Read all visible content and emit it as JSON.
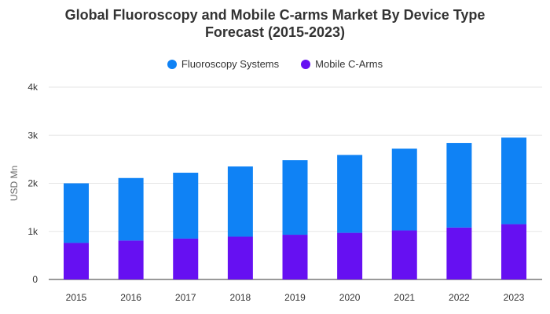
{
  "colors": {
    "fluoroscopy": "#0f82f5",
    "mobile": "#6610f2",
    "grid": "#e6e6e6",
    "axis": "#333333"
  },
  "chart_data": {
    "type": "bar",
    "stacked": true,
    "title_line1": "Global Fluoroscopy and Mobile C-arms Market By Device Type",
    "title_line2": "Forecast (2015-2023)",
    "xlabel": "",
    "ylabel": "USD Mn",
    "ylim": [
      0,
      4000
    ],
    "yticks": [
      0,
      1000,
      2000,
      3000,
      4000
    ],
    "ytick_labels": [
      "0",
      "1k",
      "2k",
      "3k",
      "4k"
    ],
    "grid": true,
    "legend_position": "top-center",
    "categories": [
      "2015",
      "2016",
      "2017",
      "2018",
      "2019",
      "2020",
      "2021",
      "2022",
      "2023"
    ],
    "series": [
      {
        "name": "Mobile C-Arms",
        "values": [
          760,
          810,
          850,
          890,
          930,
          970,
          1020,
          1080,
          1150
        ]
      },
      {
        "name": "Fluoroscopy Systems",
        "values": [
          1240,
          1300,
          1370,
          1460,
          1550,
          1620,
          1700,
          1760,
          1800
        ]
      }
    ]
  }
}
